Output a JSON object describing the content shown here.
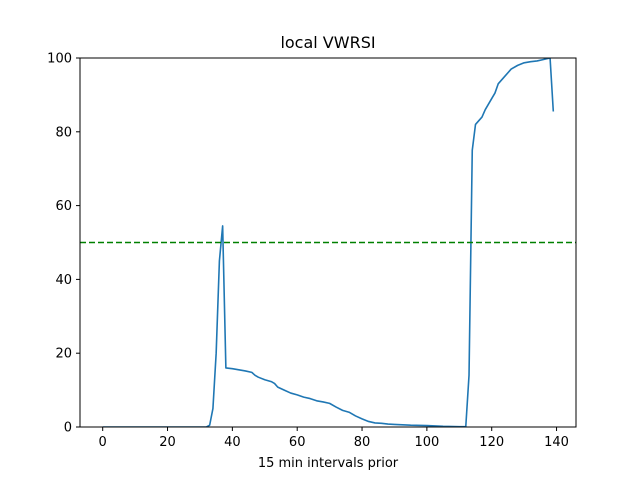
{
  "chart_data": {
    "type": "line",
    "title": "local VWRSI",
    "xlabel": "15 min intervals prior",
    "ylabel": "",
    "xlim": [
      -7,
      146
    ],
    "ylim": [
      0,
      100
    ],
    "xticks": [
      0,
      20,
      40,
      60,
      80,
      100,
      120,
      140
    ],
    "yticks": [
      0,
      20,
      40,
      60,
      80,
      100
    ],
    "grid": false,
    "series": [
      {
        "color": "#1f77b4",
        "x": [
          0,
          10,
          20,
          30,
          32,
          33,
          34,
          35,
          36,
          37,
          38,
          40,
          42,
          44,
          46,
          47,
          48,
          50,
          52,
          53,
          54,
          56,
          58,
          60,
          62,
          64,
          66,
          68,
          70,
          72,
          74,
          76,
          78,
          80,
          82,
          84,
          86,
          88,
          90,
          95,
          100,
          105,
          110,
          112,
          113,
          114,
          115,
          117,
          118,
          120,
          121,
          122,
          124,
          126,
          128,
          130,
          132,
          134,
          136,
          137,
          138,
          139
        ],
        "y": [
          0,
          0,
          0,
          0,
          0,
          0.5,
          5,
          20,
          45,
          54.5,
          16,
          15.8,
          15.5,
          15.2,
          14.8,
          14,
          13.5,
          12.8,
          12.3,
          11.8,
          10.8,
          10,
          9.2,
          8.7,
          8.1,
          7.7,
          7.1,
          6.8,
          6.4,
          5.4,
          4.5,
          4.0,
          3.0,
          2.2,
          1.5,
          1.1,
          1.0,
          0.8,
          0.7,
          0.5,
          0.4,
          0.2,
          0.1,
          0.1,
          14,
          75,
          82,
          84,
          86,
          89,
          90.5,
          93,
          95,
          97,
          98,
          98.7,
          99,
          99.2,
          99.6,
          99.8,
          100,
          85.5
        ]
      }
    ],
    "reference_line": {
      "y": 50,
      "color": "#008000",
      "style": "dashed"
    }
  }
}
